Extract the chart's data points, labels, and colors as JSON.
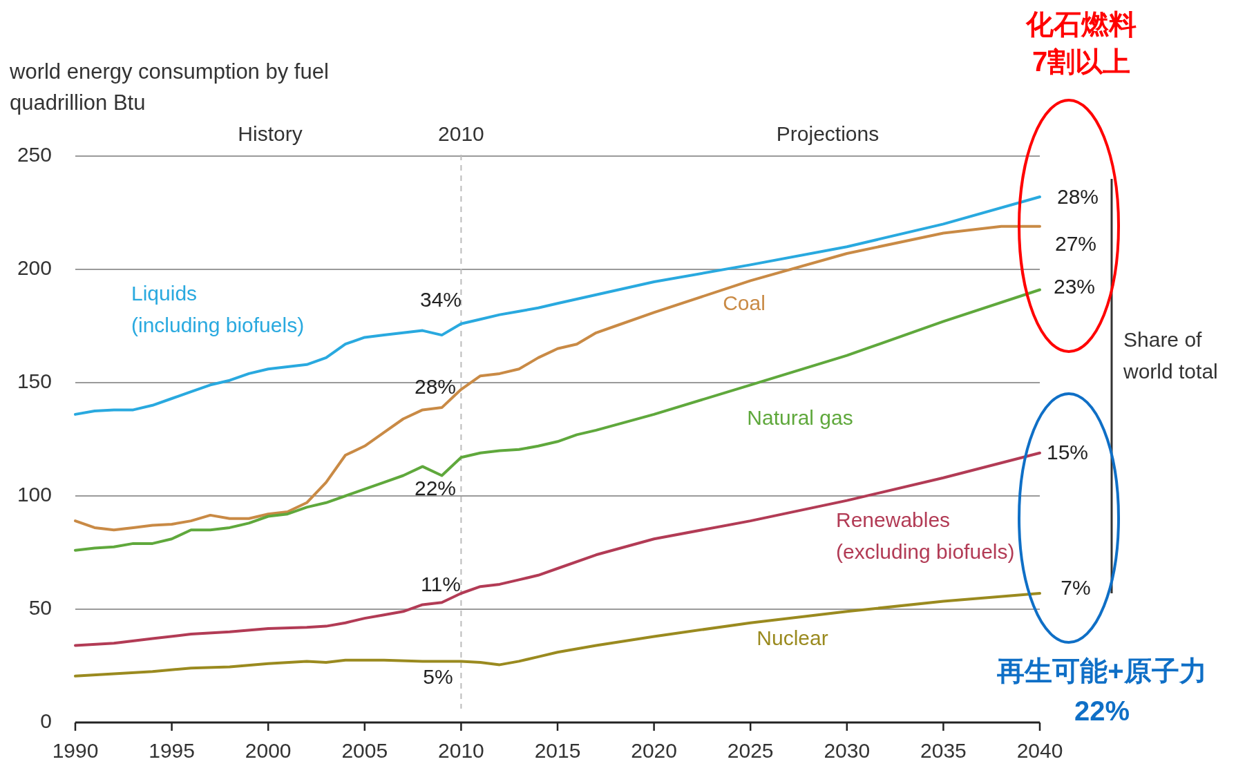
{
  "chart_data": {
    "type": "line",
    "title": "world energy consumption by fuel",
    "ylabel": "quadrillion Btu",
    "xlim": [
      1990,
      2040
    ],
    "xticks": [
      1990,
      1995,
      2000,
      2005,
      2010,
      2015,
      2020,
      2025,
      2030,
      2035,
      2040
    ],
    "ylim": [
      0,
      250
    ],
    "yticks": [
      0,
      50,
      100,
      150,
      200,
      250
    ],
    "grid": "y",
    "legend": false,
    "marker": "none",
    "line_style": "solid",
    "series": [
      {
        "name": "Liquids (including biofuels)",
        "color": "#29a9df",
        "x": [
          1990,
          1991,
          1992,
          1993,
          1994,
          1995,
          1996,
          1997,
          1998,
          1999,
          2000,
          2001,
          2002,
          2003,
          2004,
          2005,
          2006,
          2007,
          2008,
          2009,
          2010,
          2011,
          2012,
          2013,
          2014,
          2015,
          2020,
          2025,
          2030,
          2035,
          2040
        ],
        "values": [
          136,
          137.5,
          138,
          138,
          140,
          143,
          146,
          149,
          151,
          154,
          156,
          157,
          158,
          161,
          167,
          170,
          171,
          172,
          173,
          171,
          176,
          178,
          180,
          181.5,
          183,
          185,
          194.5,
          202,
          210,
          220,
          232
        ]
      },
      {
        "name": "Coal",
        "color": "#c98a45",
        "x": [
          1990,
          1991,
          1992,
          1993,
          1994,
          1995,
          1996,
          1997,
          1998,
          1999,
          2000,
          2001,
          2002,
          2003,
          2004,
          2005,
          2006,
          2007,
          2008,
          2009,
          2010,
          2011,
          2012,
          2013,
          2014,
          2015,
          2016,
          2017,
          2018,
          2020,
          2025,
          2030,
          2035,
          2038,
          2040
        ],
        "values": [
          89,
          86,
          85,
          86,
          87,
          87.5,
          89,
          91.5,
          90,
          90,
          92,
          93,
          97,
          106,
          118,
          122,
          128,
          134,
          138,
          139,
          147,
          153,
          154,
          156,
          161,
          165,
          167,
          172,
          175,
          181,
          195,
          207,
          216,
          219,
          219
        ]
      },
      {
        "name": "Natural gas",
        "color": "#5fa83c",
        "x": [
          1990,
          1991,
          1992,
          1993,
          1994,
          1995,
          1996,
          1997,
          1998,
          1999,
          2000,
          2001,
          2002,
          2003,
          2004,
          2005,
          2006,
          2007,
          2008,
          2009,
          2010,
          2011,
          2012,
          2013,
          2014,
          2015,
          2016,
          2017,
          2020,
          2025,
          2030,
          2035,
          2040
        ],
        "values": [
          76,
          77,
          77.5,
          79,
          79,
          81,
          85,
          85,
          86,
          88,
          91,
          92,
          95,
          97,
          100,
          103,
          106,
          109,
          113,
          109,
          117,
          119,
          120,
          120.5,
          122,
          124,
          127,
          129,
          136,
          149,
          162,
          177,
          191
        ]
      },
      {
        "name": "Renewables (excluding biofuels)",
        "color": "#b23b55",
        "x": [
          1990,
          1992,
          1994,
          1996,
          1998,
          2000,
          2002,
          2003,
          2004,
          2005,
          2006,
          2007,
          2008,
          2009,
          2010,
          2011,
          2012,
          2013,
          2014,
          2015,
          2017,
          2020,
          2025,
          2030,
          2035,
          2040
        ],
        "values": [
          34,
          35,
          37,
          39,
          40,
          41.5,
          42,
          42.5,
          44,
          46,
          47.5,
          49,
          52,
          53,
          57,
          60,
          61,
          63,
          65,
          68,
          74,
          81,
          89,
          98,
          108,
          119
        ]
      },
      {
        "name": "Nuclear",
        "color": "#9a8a1f",
        "x": [
          1990,
          1992,
          1994,
          1996,
          1998,
          2000,
          2002,
          2003,
          2004,
          2006,
          2008,
          2010,
          2011,
          2012,
          2013,
          2014,
          2015,
          2017,
          2020,
          2025,
          2030,
          2035,
          2040
        ],
        "values": [
          20.5,
          21.5,
          22.5,
          24,
          24.5,
          26,
          27,
          26.5,
          27.5,
          27.5,
          27,
          27,
          26.5,
          25.5,
          27,
          29,
          31,
          34,
          38,
          44,
          49,
          53.5,
          57
        ]
      }
    ],
    "ref_lines": [
      {
        "axis": "x",
        "value": 2010,
        "label": "2010",
        "color": "#bbbbbb",
        "line_style": "dashed"
      }
    ],
    "annotations": [
      "History",
      "Projections",
      "34%",
      "28%",
      "22%",
      "11%",
      "5%",
      "28%",
      "27%",
      "23%",
      "15%",
      "7%",
      "Share of world total",
      "化石燃料",
      "7割以上",
      "再生可能+原子力",
      "22%"
    ]
  }
}
